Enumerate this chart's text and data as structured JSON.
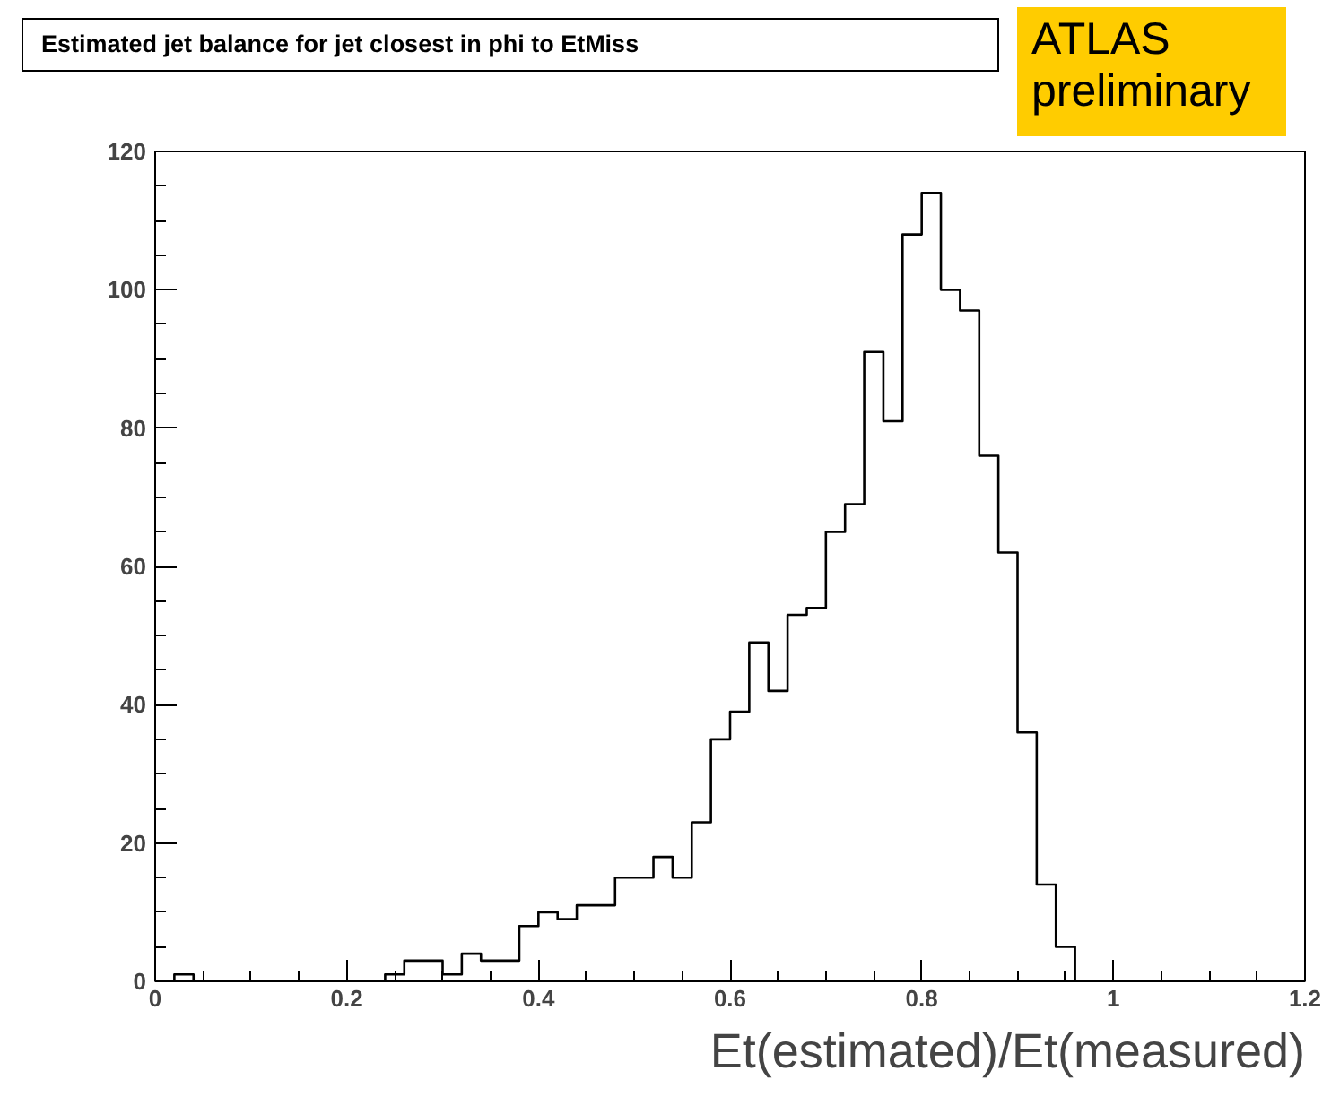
{
  "chart_data": {
    "type": "histogram",
    "title": "Estimated jet balance for jet closest in phi to EtMiss",
    "xlabel": "Et(estimated)/Et(measured)",
    "annotations": [
      "ATLAS preliminary"
    ],
    "bins": [
      0,
      0.02,
      0.04,
      0.06,
      0.08,
      0.1,
      0.12,
      0.14,
      0.16,
      0.18,
      0.2,
      0.22,
      0.24,
      0.26,
      0.28,
      0.3,
      0.32,
      0.34,
      0.36,
      0.38,
      0.4,
      0.42,
      0.44,
      0.46,
      0.48,
      0.5,
      0.52,
      0.54,
      0.56,
      0.58,
      0.6,
      0.62,
      0.64,
      0.66,
      0.68,
      0.7,
      0.72,
      0.74,
      0.76,
      0.78,
      0.8,
      0.82,
      0.84,
      0.86,
      0.88,
      0.9,
      0.92,
      0.94,
      0.96,
      0.98,
      1,
      1.02,
      1.04,
      1.06,
      1.08,
      1.1,
      1.12,
      1.14,
      1.16,
      1.18,
      1.2
    ],
    "values": [
      0,
      1,
      0,
      0,
      0,
      0,
      0,
      0,
      0,
      0,
      0,
      0,
      1,
      3,
      3,
      1,
      4,
      3,
      3,
      8,
      10,
      9,
      11,
      11,
      15,
      15,
      18,
      15,
      23,
      35,
      39,
      49,
      42,
      53,
      54,
      65,
      69,
      91,
      81,
      108,
      114,
      100,
      97,
      76,
      62,
      36,
      14,
      5,
      0,
      0,
      0,
      0,
      0,
      0,
      0,
      0,
      0,
      0,
      0,
      0
    ],
    "color": "#000000",
    "xlim": [
      0,
      1.2
    ],
    "ylim": [
      0,
      120
    ],
    "xticks": [
      0,
      0.2,
      0.4,
      0.6,
      0.8,
      1,
      1.2
    ],
    "yticks": [
      0,
      20,
      40,
      60,
      80,
      100,
      120
    ],
    "grid": false,
    "legend": false
  }
}
